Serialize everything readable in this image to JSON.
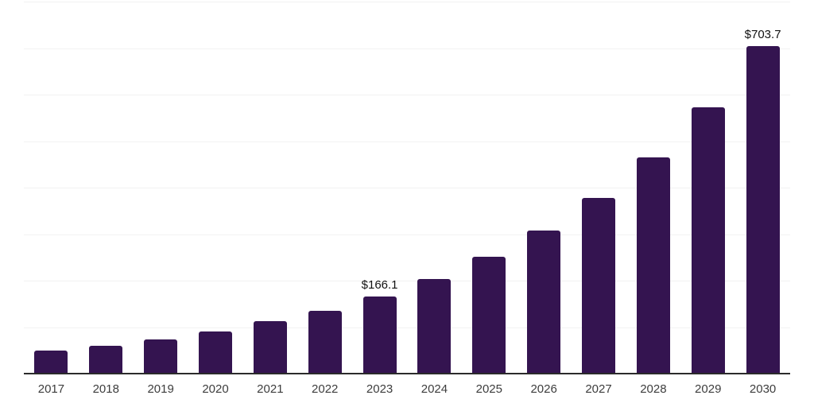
{
  "chart_data": {
    "type": "bar",
    "title": "",
    "xlabel": "",
    "ylabel": "",
    "categories": [
      "2017",
      "2018",
      "2019",
      "2020",
      "2021",
      "2022",
      "2023",
      "2024",
      "2025",
      "2026",
      "2027",
      "2028",
      "2029",
      "2030"
    ],
    "values": [
      49,
      60,
      73,
      90,
      112,
      135,
      166.1,
      204,
      251,
      308,
      378,
      465,
      572,
      703.7
    ],
    "bar_labels": [
      "",
      "",
      "",
      "",
      "",
      "",
      "$166.1",
      "",
      "",
      "",
      "",
      "",
      "",
      "$703.7"
    ],
    "ylim": [
      0,
      800
    ],
    "gridline_interval": 100,
    "grid": "horizontal-only",
    "legend": "none",
    "y_tick_labels_shown": false,
    "colors": {
      "bar": "#341450",
      "gridline": "#f2f2f2",
      "axis_line": "#2b2b2b",
      "tick_label": "#3d3d3d",
      "value_label": "#111111",
      "background": "#ffffff"
    }
  }
}
